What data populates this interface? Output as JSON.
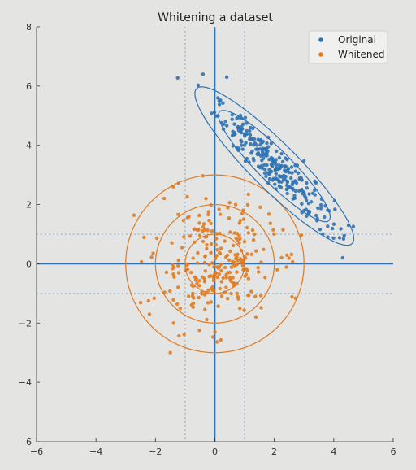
{
  "chart_data": {
    "type": "scatter",
    "title": "Whitening a dataset",
    "xlabel": "",
    "ylabel": "",
    "xlim": [
      -6,
      6
    ],
    "ylim": [
      -6,
      8
    ],
    "xticks": [
      -6,
      -4,
      -2,
      0,
      2,
      4,
      6
    ],
    "yticks": [
      -6,
      -4,
      -2,
      0,
      2,
      4,
      6,
      8
    ],
    "grid": false,
    "legend_position": "top-right",
    "colors": {
      "original": "#2f72b3",
      "whitened": "#e07b22",
      "axes": "#2f72b3",
      "guides": "#8aa7cc"
    },
    "series": [
      {
        "name": "Original",
        "color": "#2f72b3",
        "mean": [
          2.0,
          3.3
        ],
        "std": [
          1.0,
          1.0
        ],
        "correlation": -0.93,
        "n": 260,
        "points_sample": [
          [
            -0.4,
            6.4
          ],
          [
            0.4,
            6.3
          ],
          [
            0.1,
            5.6
          ],
          [
            4.5,
            1.3
          ],
          [
            3.8,
            0.9
          ],
          [
            4.3,
            0.2
          ],
          [
            1.2,
            4.6
          ],
          [
            2.5,
            2.6
          ],
          [
            3.0,
            1.8
          ]
        ],
        "confidence_ellipses": [
          {
            "center": [
              2.0,
              3.3
            ],
            "semi_major": 3.7,
            "semi_minor": 0.78,
            "angle_deg": -45
          },
          {
            "center": [
              2.0,
              3.3
            ],
            "semi_major": 2.6,
            "semi_minor": 0.55,
            "angle_deg": -45
          }
        ]
      },
      {
        "name": "Whitened",
        "color": "#e07b22",
        "mean": [
          0.0,
          0.0
        ],
        "std": [
          1.0,
          1.0
        ],
        "correlation": 0.0,
        "n": 260,
        "points_sample": [
          [
            -2.2,
            -1.7
          ],
          [
            -1.5,
            -3.0
          ],
          [
            0.0,
            -2.3
          ],
          [
            -1.4,
            2.6
          ],
          [
            2.1,
            -0.2
          ],
          [
            0.7,
            2.0
          ],
          [
            -0.3,
            2.2
          ]
        ],
        "confidence_circles": [
          {
            "center": [
              0,
              0
            ],
            "radius": 1.0
          },
          {
            "center": [
              0,
              0
            ],
            "radius": 2.0
          },
          {
            "center": [
              0,
              0
            ],
            "radius": 3.0
          }
        ]
      }
    ],
    "reference_lines": {
      "vertical": [
        0,
        -1,
        1
      ],
      "horizontal": [
        0,
        -1,
        1
      ]
    }
  }
}
